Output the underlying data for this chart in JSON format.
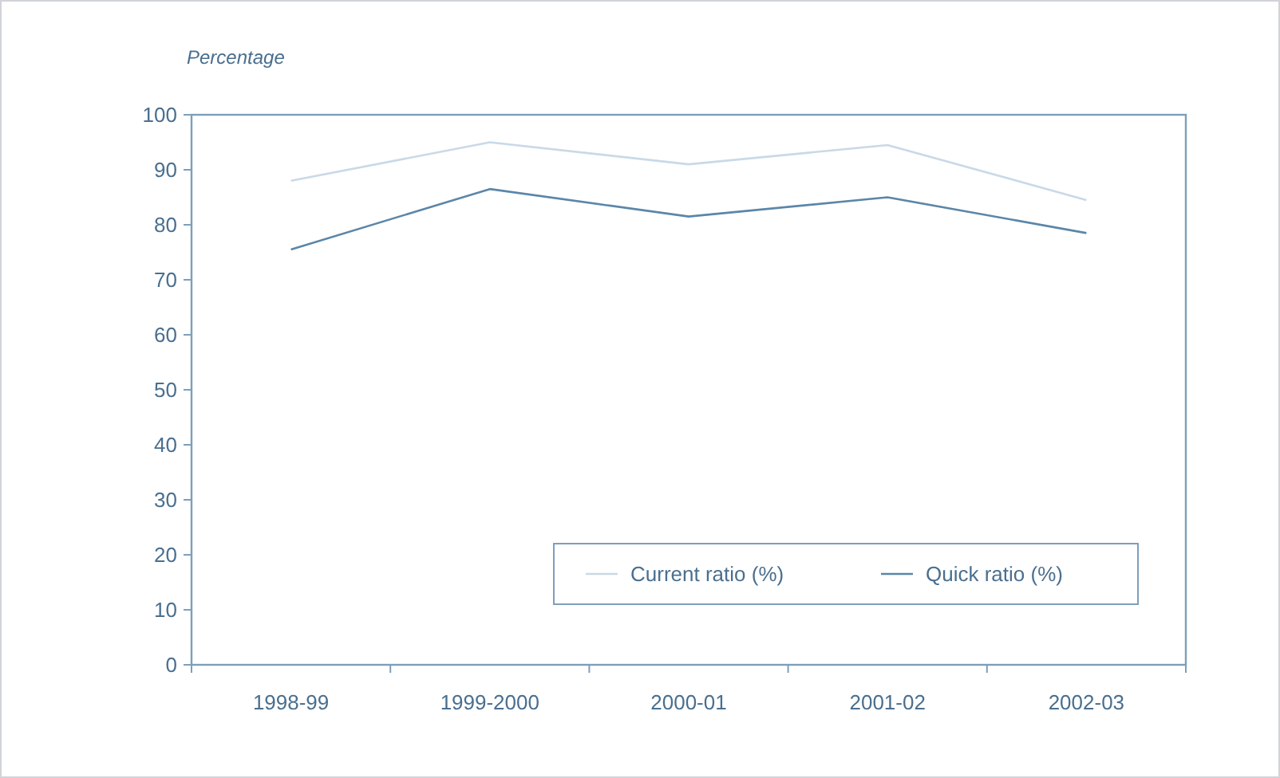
{
  "chart_data": {
    "type": "line",
    "ylabel": "Percentage",
    "categories": [
      "1998-99",
      "1999-2000",
      "2000-01",
      "2001-02",
      "2002-03"
    ],
    "series": [
      {
        "name": "Current ratio (%)",
        "color": "#c9d9e7",
        "values": [
          88,
          95,
          91,
          94.5,
          84.5
        ]
      },
      {
        "name": "Quick ratio (%)",
        "color": "#5b86a8",
        "values": [
          75.5,
          86.5,
          81.5,
          85,
          78.5
        ]
      }
    ],
    "ylim": [
      0,
      100
    ],
    "yticks": [
      0,
      10,
      20,
      30,
      40,
      50,
      60,
      70,
      80,
      90,
      100
    ],
    "grid": false,
    "legend": "bottom right",
    "marker": "none",
    "line_style": "solid"
  }
}
